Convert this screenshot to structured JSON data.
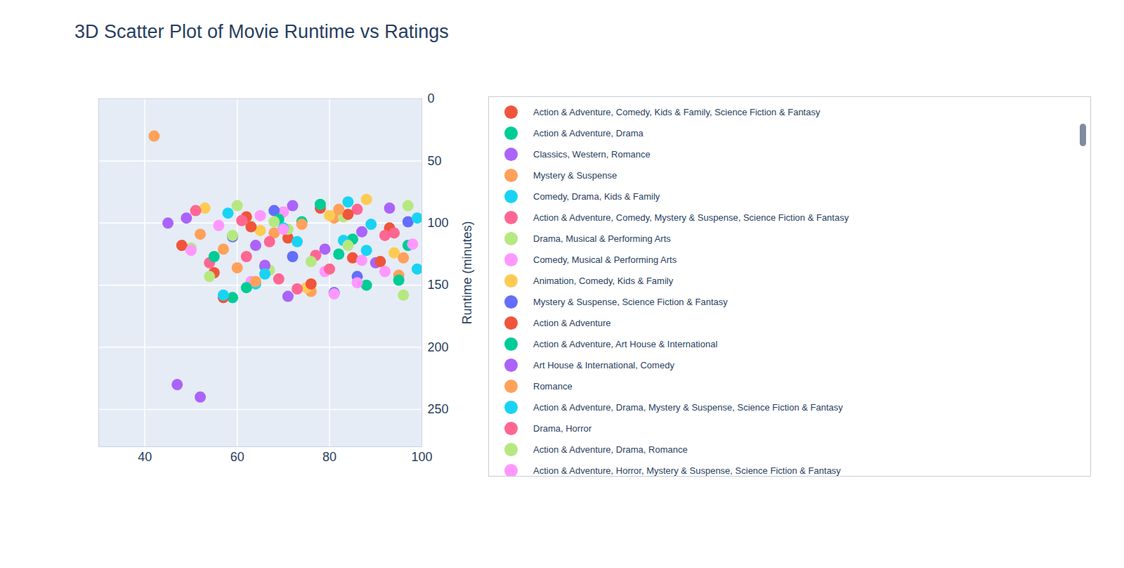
{
  "chart_data": {
    "type": "scatter",
    "title": "3D Scatter Plot of Movie Runtime vs Ratings",
    "ylabel": "Runtime (minutes)",
    "xlim": [
      30,
      100
    ],
    "xticks": [
      40,
      60,
      80,
      100
    ],
    "ylim": [
      0,
      280
    ],
    "yticks": [
      0,
      50,
      100,
      150,
      200,
      250
    ],
    "grid": true,
    "marker": "circle",
    "series": [
      {
        "name": "Action & Adventure, Comedy, Kids & Family, Science Fiction & Fantasy",
        "color": "#EF553B",
        "x": [
          62,
          71,
          85,
          93,
          55,
          78
        ],
        "values": [
          95,
          112,
          128,
          104,
          140,
          88
        ]
      },
      {
        "name": "Action & Adventure, Drama",
        "color": "#00cc96",
        "x": [
          66,
          88,
          97,
          74,
          59,
          82
        ],
        "values": [
          135,
          150,
          118,
          99,
          160,
          125
        ]
      },
      {
        "name": "Classics, Western, Romance",
        "color": "#ab63fa",
        "x": [
          45,
          52,
          64,
          90,
          72,
          47
        ],
        "values": [
          100,
          240,
          118,
          132,
          86,
          230
        ]
      },
      {
        "name": "Mystery & Suspense",
        "color": "#FFA15A",
        "x": [
          42,
          68,
          81,
          95,
          57,
          76
        ],
        "values": [
          30,
          108,
          96,
          142,
          121,
          155
        ]
      },
      {
        "name": "Comedy, Drama, Kids & Family",
        "color": "#19d3f3",
        "x": [
          58,
          73,
          89,
          99,
          64,
          84
        ],
        "values": [
          92,
          115,
          101,
          137,
          149,
          83
        ]
      },
      {
        "name": "Action & Adventure, Comedy, Mystery & Suspense, Science Fiction & Fantasy",
        "color": "#FF6692",
        "x": [
          61,
          77,
          92,
          69,
          86,
          54
        ],
        "values": [
          98,
          126,
          110,
          145,
          89,
          132
        ]
      },
      {
        "name": "Drama, Musical & Performing Arts",
        "color": "#B6E880",
        "x": [
          50,
          67,
          83,
          96,
          71,
          60
        ],
        "values": [
          120,
          138,
          95,
          158,
          105,
          86
        ]
      },
      {
        "name": "Comedy, Musical & Performing Arts",
        "color": "#FF97FF",
        "x": [
          56,
          70,
          87,
          98,
          63,
          79
        ],
        "values": [
          102,
          91,
          130,
          117,
          147,
          139
        ]
      },
      {
        "name": "Animation, Comedy, Kids & Family",
        "color": "#FECB52",
        "x": [
          53,
          65,
          80,
          94,
          75,
          88
        ],
        "values": [
          88,
          106,
          94,
          124,
          152,
          81
        ]
      },
      {
        "name": "Mystery & Suspense, Science Fiction & Fantasy",
        "color": "#636efa",
        "x": [
          59,
          72,
          86,
          97,
          68,
          81
        ],
        "values": [
          111,
          127,
          143,
          99,
          90,
          156
        ]
      },
      {
        "name": "Action & Adventure",
        "color": "#EF553B",
        "x": [
          48,
          63,
          76,
          91,
          84,
          57
        ],
        "values": [
          118,
          103,
          149,
          131,
          93,
          160
        ]
      },
      {
        "name": "Action & Adventure, Art House & International",
        "color": "#00cc96",
        "x": [
          55,
          69,
          85,
          95,
          62,
          78
        ],
        "values": [
          127,
          97,
          113,
          146,
          152,
          85
        ]
      },
      {
        "name": "Art House & International, Comedy",
        "color": "#ab63fa",
        "x": [
          49,
          66,
          79,
          93,
          71,
          87
        ],
        "values": [
          96,
          134,
          121,
          88,
          159,
          107
        ]
      },
      {
        "name": "Romance",
        "color": "#FFA15A",
        "x": [
          52,
          64,
          82,
          96,
          74,
          60
        ],
        "values": [
          109,
          147,
          89,
          128,
          101,
          136
        ]
      },
      {
        "name": "Action & Adventure, Drama, Mystery & Suspense, Science Fiction & Fantasy",
        "color": "#19d3f3",
        "x": [
          57,
          70,
          88,
          99,
          66,
          83
        ],
        "values": [
          158,
          104,
          122,
          96,
          141,
          114
        ]
      },
      {
        "name": "Drama, Horror",
        "color": "#FF6692",
        "x": [
          51,
          67,
          80,
          94,
          73,
          62
        ],
        "values": [
          90,
          115,
          137,
          108,
          153,
          127
        ]
      },
      {
        "name": "Action & Adventure, Drama, Romance",
        "color": "#B6E880",
        "x": [
          54,
          68,
          84,
          97,
          76,
          59
        ],
        "values": [
          143,
          99,
          118,
          86,
          131,
          110
        ]
      },
      {
        "name": "Action & Adventure, Horror, Mystery & Suspense, Science Fiction & Fantasy",
        "color": "#FF97FF",
        "x": [
          50,
          65,
          81,
          92,
          70,
          86
        ],
        "values": [
          122,
          94,
          157,
          139,
          105,
          148
        ]
      }
    ]
  }
}
